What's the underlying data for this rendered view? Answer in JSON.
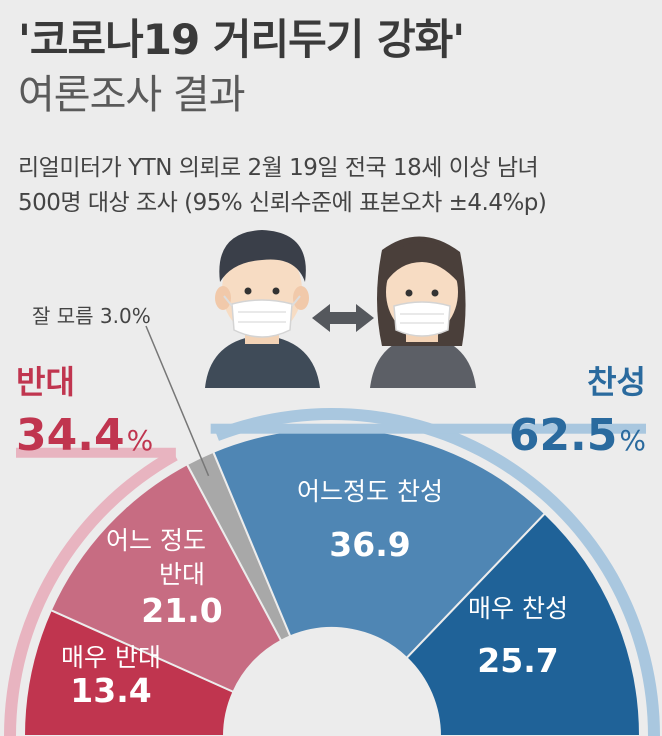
{
  "header": {
    "title": "'코로나19 거리두기 강화'",
    "subtitle": "여론조사 결과",
    "desc_line1": "리얼미터가 YTN 의뢰로 2월 19일 전국 18세 이상 남녀",
    "desc_line2": "500명 대상 조사 (95% 신뢰수준에 표본오차 ±4.4%p)"
  },
  "icons": [
    "man-with-mask-icon",
    "double-arrow-icon",
    "woman-with-mask-icon"
  ],
  "colors": {
    "strong_oppose": "#c0354f",
    "some_oppose": "#c76c82",
    "dont_know": "#a8a8a8",
    "some_support": "#4f86b4",
    "strong_support": "#1f6298",
    "oppose_outer": "#e8b4c0",
    "support_outer": "#a9c7df",
    "oppose_text": "#c0354f",
    "support_text": "#2a6a9e"
  },
  "chart_data": {
    "type": "pie",
    "shape": "semi-donut",
    "unit": "%",
    "slices": [
      {
        "label": "매우 반대",
        "value": 13.4
      },
      {
        "label": "어느 정도 반대",
        "value": 21.0
      },
      {
        "label": "잘 모름",
        "value": 3.0
      },
      {
        "label": "어느정도 찬성",
        "value": 36.9
      },
      {
        "label": "매우 찬성",
        "value": 25.7
      }
    ],
    "groups": [
      {
        "label": "반대",
        "value_text": "34.4",
        "unit": "%",
        "value": 34.4
      },
      {
        "label": "찬성",
        "value_text": "62.5",
        "unit": "%",
        "value": 62.5
      }
    ],
    "annotation": "잘 모름 3.0%"
  }
}
